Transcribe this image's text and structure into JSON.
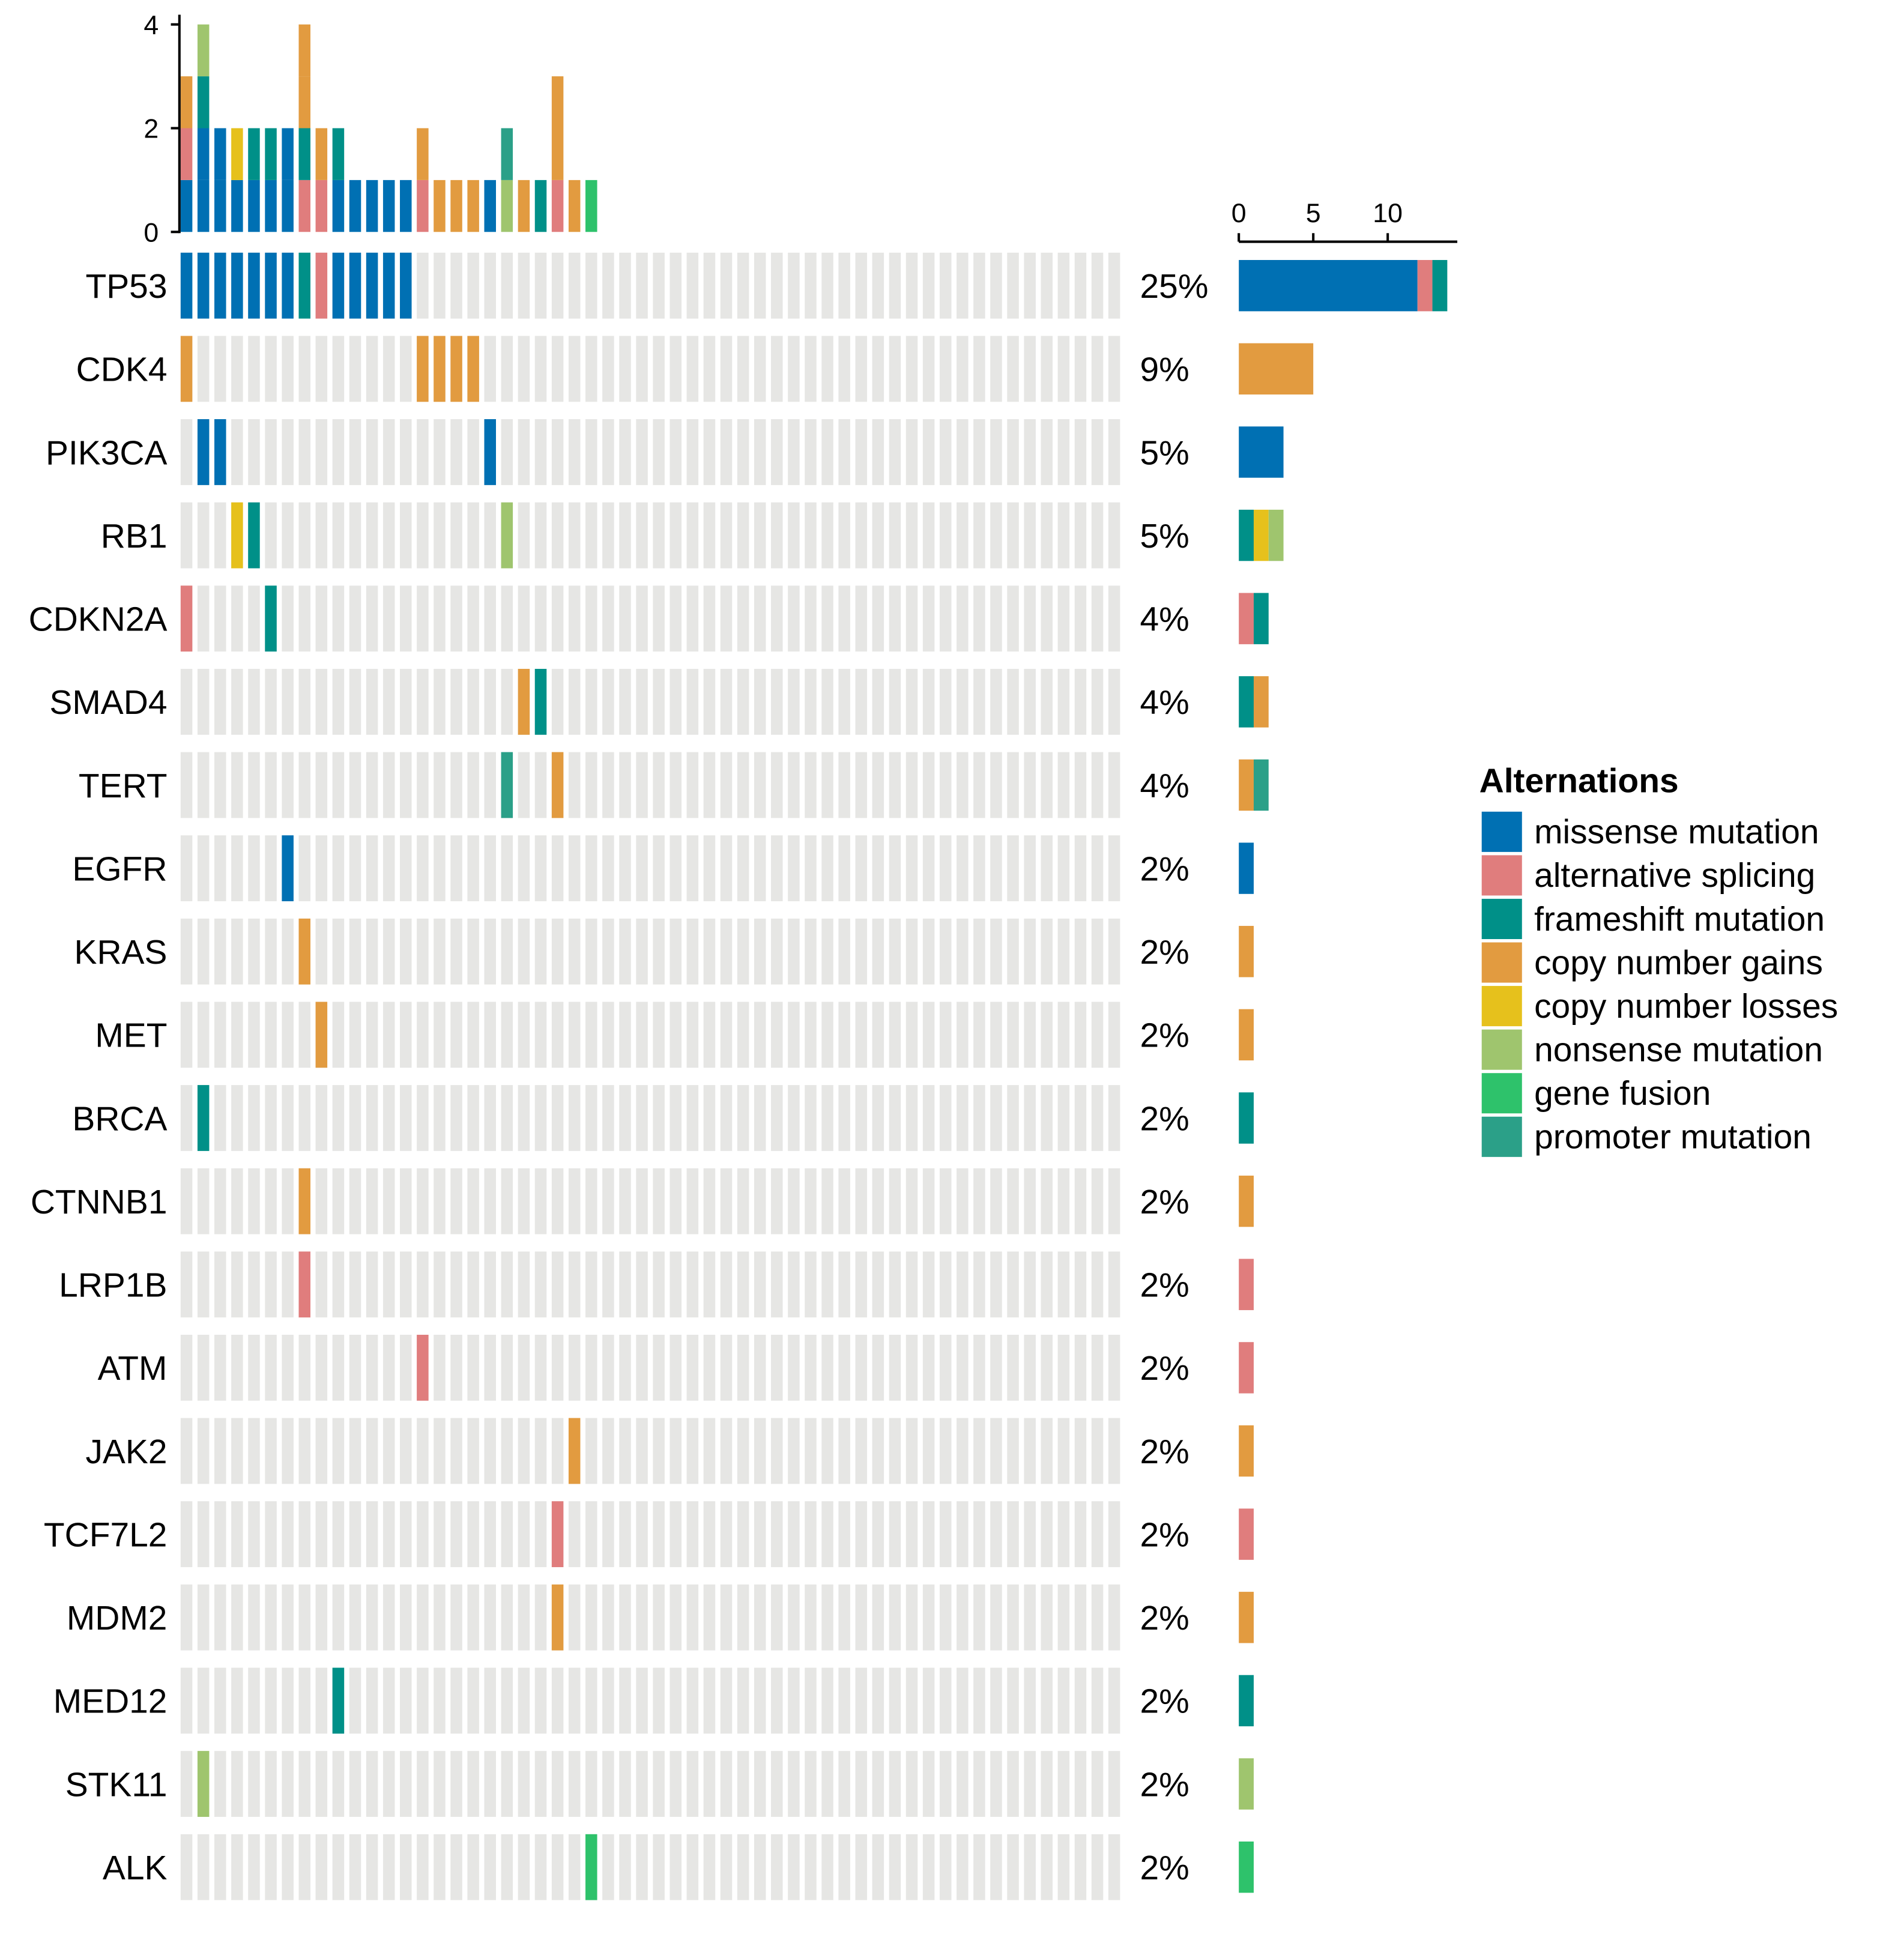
{
  "chart_data": {
    "type": "heatmap",
    "subtype": "oncoprint",
    "n_samples": 56,
    "legend_title": "Alternations",
    "legend_placement": "right",
    "alteration_types": [
      {
        "key": "missense",
        "label": "missense mutation",
        "color": "#0070B3"
      },
      {
        "key": "splicing",
        "label": "alternative splicing",
        "color": "#E07D7D"
      },
      {
        "key": "frameshift",
        "label": "frameshift mutation",
        "color": "#009088"
      },
      {
        "key": "gain",
        "label": "copy number gains",
        "color": "#E29B40"
      },
      {
        "key": "loss",
        "label": "copy number losses",
        "color": "#E6C11C"
      },
      {
        "key": "nonsense",
        "label": "nonsense mutation",
        "color": "#9FC56E"
      },
      {
        "key": "fusion",
        "label": "gene fusion",
        "color": "#2EC26B"
      },
      {
        "key": "promoter",
        "label": "promoter mutation",
        "color": "#2BA088"
      }
    ],
    "top_axis": {
      "ylim": [
        0,
        4
      ],
      "ticks": [
        "0",
        "2",
        "4"
      ]
    },
    "right_axis": {
      "xlim": [
        0,
        14
      ],
      "ticks": [
        "0",
        "5",
        "10"
      ]
    },
    "genes": [
      {
        "name": "TP53",
        "pct": "25%",
        "alts": [
          [
            0,
            "missense"
          ],
          [
            1,
            "missense"
          ],
          [
            2,
            "missense"
          ],
          [
            3,
            "missense"
          ],
          [
            4,
            "missense"
          ],
          [
            5,
            "missense"
          ],
          [
            6,
            "missense"
          ],
          [
            7,
            "frameshift"
          ],
          [
            8,
            "splicing"
          ],
          [
            9,
            "missense"
          ],
          [
            10,
            "missense"
          ],
          [
            11,
            "missense"
          ],
          [
            12,
            "missense"
          ],
          [
            13,
            "missense"
          ]
        ]
      },
      {
        "name": "CDK4",
        "pct": "9%",
        "alts": [
          [
            0,
            "gain"
          ],
          [
            14,
            "gain"
          ],
          [
            15,
            "gain"
          ],
          [
            16,
            "gain"
          ],
          [
            17,
            "gain"
          ]
        ]
      },
      {
        "name": "PIK3CA",
        "pct": "5%",
        "alts": [
          [
            1,
            "missense"
          ],
          [
            2,
            "missense"
          ],
          [
            18,
            "missense"
          ]
        ]
      },
      {
        "name": "RB1",
        "pct": "5%",
        "alts": [
          [
            3,
            "loss"
          ],
          [
            4,
            "frameshift"
          ],
          [
            19,
            "nonsense"
          ]
        ]
      },
      {
        "name": "CDKN2A",
        "pct": "4%",
        "alts": [
          [
            0,
            "splicing"
          ],
          [
            5,
            "frameshift"
          ]
        ]
      },
      {
        "name": "SMAD4",
        "pct": "4%",
        "alts": [
          [
            20,
            "gain"
          ],
          [
            21,
            "frameshift"
          ]
        ]
      },
      {
        "name": "TERT",
        "pct": "4%",
        "alts": [
          [
            19,
            "promoter"
          ],
          [
            22,
            "gain"
          ]
        ]
      },
      {
        "name": "EGFR",
        "pct": "2%",
        "alts": [
          [
            6,
            "missense"
          ]
        ]
      },
      {
        "name": "KRAS",
        "pct": "2%",
        "alts": [
          [
            7,
            "gain"
          ]
        ]
      },
      {
        "name": "MET",
        "pct": "2%",
        "alts": [
          [
            8,
            "gain"
          ]
        ]
      },
      {
        "name": "BRCA",
        "pct": "2%",
        "alts": [
          [
            1,
            "frameshift"
          ]
        ]
      },
      {
        "name": "CTNNB1",
        "pct": "2%",
        "alts": [
          [
            7,
            "gain"
          ]
        ]
      },
      {
        "name": "LRP1B",
        "pct": "2%",
        "alts": [
          [
            7,
            "splicing"
          ]
        ]
      },
      {
        "name": "ATM",
        "pct": "2%",
        "alts": [
          [
            14,
            "splicing"
          ]
        ]
      },
      {
        "name": "JAK2",
        "pct": "2%",
        "alts": [
          [
            23,
            "gain"
          ]
        ]
      },
      {
        "name": "TCF7L2",
        "pct": "2%",
        "alts": [
          [
            22,
            "splicing"
          ]
        ]
      },
      {
        "name": "MDM2",
        "pct": "2%",
        "alts": [
          [
            22,
            "gain"
          ]
        ]
      },
      {
        "name": "MED12",
        "pct": "2%",
        "alts": [
          [
            9,
            "frameshift"
          ]
        ]
      },
      {
        "name": "STK11",
        "pct": "2%",
        "alts": [
          [
            1,
            "nonsense"
          ]
        ]
      },
      {
        "name": "ALK",
        "pct": "2%",
        "alts": [
          [
            24,
            "fusion"
          ]
        ]
      }
    ],
    "background_color": "#E6E6E4"
  }
}
